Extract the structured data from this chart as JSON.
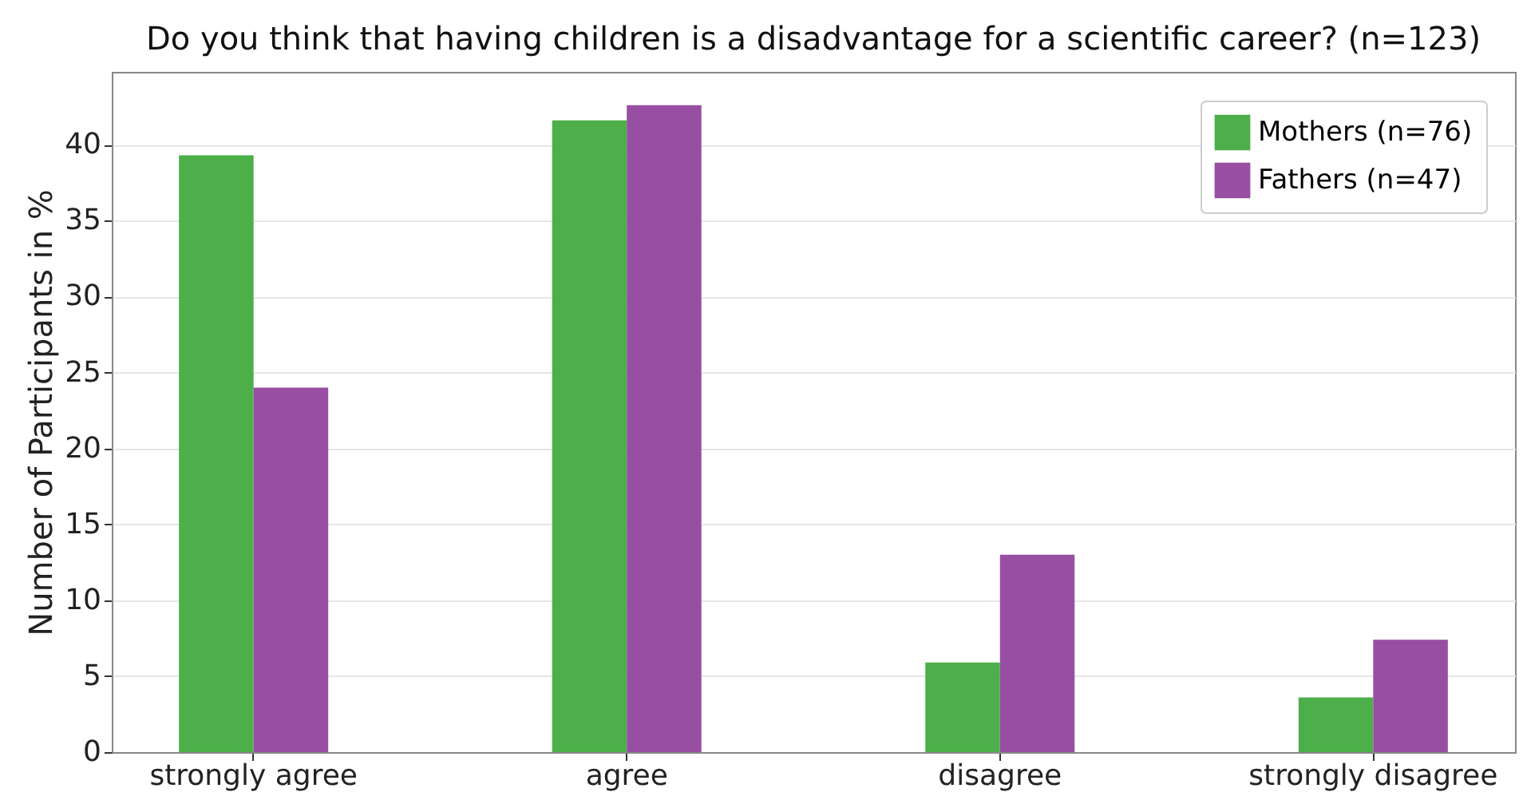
{
  "chart_data": {
    "type": "bar",
    "title": "Do you think that having children is a disadvantage for a scientific career? (n=123)",
    "ylabel": "Number of Participants in %",
    "categories": [
      "strongly agree",
      "agree",
      "disagree",
      "strongly disagree"
    ],
    "series": [
      {
        "name": "Mothers (n=76)",
        "color": "#4daf4a",
        "values": [
          39.3,
          41.6,
          5.9,
          3.6
        ]
      },
      {
        "name": "Fathers (n=47)",
        "color": "#984ea3",
        "values": [
          24.0,
          42.6,
          13.0,
          7.4
        ]
      }
    ],
    "ylim": [
      0,
      44.8
    ],
    "yticks": [
      0,
      5,
      10,
      15,
      20,
      25,
      30,
      35,
      40
    ],
    "grid": true,
    "legend": "top right"
  }
}
